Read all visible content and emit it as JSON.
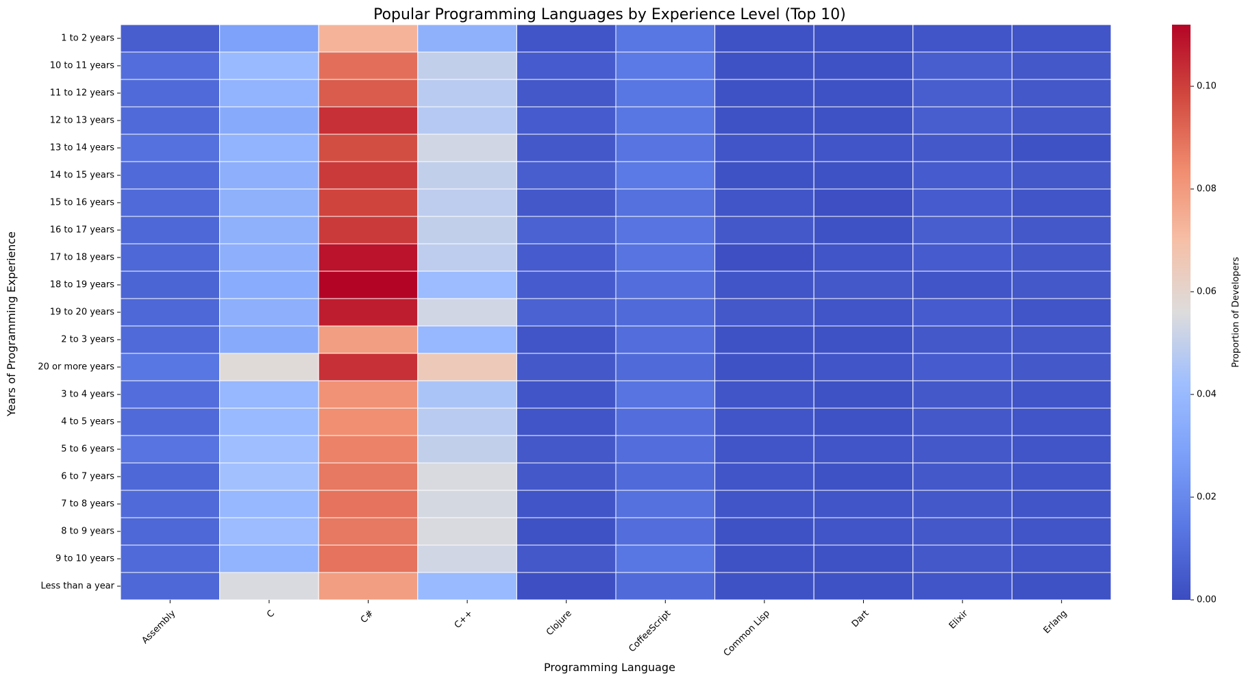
{
  "chart_data": {
    "type": "heatmap",
    "title": "Popular Programming Languages by Experience Level (Top 10)",
    "xlabel": "Programming Language",
    "ylabel": "Years of Programming Experience",
    "colorbar_label": "Proportion of Developers",
    "colormap": "coolwarm",
    "colormap_stops": [
      {
        "t": 0.0,
        "color": "#3b4cc0"
      },
      {
        "t": 0.125,
        "color": "#5977e3"
      },
      {
        "t": 0.25,
        "color": "#7b9ff9"
      },
      {
        "t": 0.375,
        "color": "#9ebeff"
      },
      {
        "t": 0.5,
        "color": "#dddcdc"
      },
      {
        "t": 0.625,
        "color": "#f6bfa6"
      },
      {
        "t": 0.75,
        "color": "#f08b6e"
      },
      {
        "t": 0.875,
        "color": "#d1493f"
      },
      {
        "t": 1.0,
        "color": "#b40426"
      }
    ],
    "cell_border_color": "#ffffff",
    "vmin": 0,
    "vmax": 0.112,
    "colorbar_ticks": [
      "0.00",
      "0.02",
      "0.04",
      "0.06",
      "0.08",
      "0.10"
    ],
    "x": [
      "Assembly",
      "C",
      "C#",
      "C++",
      "Clojure",
      "CoffeeScript",
      "Common Lisp",
      "Dart",
      "Elixir",
      "Erlang"
    ],
    "y": [
      "1 to 2 years",
      "10 to 11 years",
      "11 to 12 years",
      "12 to 13 years",
      "13 to 14 years",
      "14 to 15 years",
      "15 to 16 years",
      "16 to 17 years",
      "17 to 18 years",
      "18 to 19 years",
      "19 to 20 years",
      "2 to 3 years",
      "20 or more years",
      "3 to 4 years",
      "4 to 5 years",
      "5 to 6 years",
      "6 to 7 years",
      "7 to 8 years",
      "8 to 9 years",
      "9 to 10 years",
      "Less than a year"
    ],
    "values": [
      [
        0.006,
        0.029,
        0.073,
        0.036,
        0.003,
        0.014,
        0.002,
        0.002,
        0.003,
        0.003
      ],
      [
        0.011,
        0.04,
        0.09,
        0.05,
        0.005,
        0.015,
        0.002,
        0.002,
        0.006,
        0.004
      ],
      [
        0.01,
        0.037,
        0.094,
        0.048,
        0.004,
        0.014,
        0.002,
        0.002,
        0.006,
        0.004
      ],
      [
        0.01,
        0.033,
        0.103,
        0.047,
        0.005,
        0.014,
        0.002,
        0.002,
        0.006,
        0.004
      ],
      [
        0.012,
        0.037,
        0.097,
        0.053,
        0.004,
        0.013,
        0.003,
        0.003,
        0.004,
        0.002
      ],
      [
        0.01,
        0.035,
        0.101,
        0.05,
        0.006,
        0.015,
        0.002,
        0.002,
        0.005,
        0.004
      ],
      [
        0.01,
        0.036,
        0.099,
        0.049,
        0.004,
        0.012,
        0.003,
        0.001,
        0.005,
        0.003
      ],
      [
        0.009,
        0.036,
        0.101,
        0.05,
        0.007,
        0.013,
        0.004,
        0.002,
        0.006,
        0.004
      ],
      [
        0.009,
        0.035,
        0.109,
        0.049,
        0.005,
        0.013,
        0.001,
        0.003,
        0.005,
        0.004
      ],
      [
        0.008,
        0.034,
        0.112,
        0.041,
        0.005,
        0.011,
        0.003,
        0.004,
        0.003,
        0.004
      ],
      [
        0.009,
        0.035,
        0.107,
        0.053,
        0.007,
        0.01,
        0.004,
        0.003,
        0.005,
        0.003
      ],
      [
        0.01,
        0.033,
        0.079,
        0.039,
        0.003,
        0.011,
        0.002,
        0.002,
        0.004,
        0.004
      ],
      [
        0.014,
        0.057,
        0.103,
        0.065,
        0.004,
        0.01,
        0.002,
        0.003,
        0.005,
        0.004
      ],
      [
        0.011,
        0.039,
        0.082,
        0.045,
        0.003,
        0.013,
        0.003,
        0.002,
        0.004,
        0.003
      ],
      [
        0.01,
        0.04,
        0.083,
        0.048,
        0.003,
        0.011,
        0.003,
        0.002,
        0.004,
        0.003
      ],
      [
        0.013,
        0.042,
        0.086,
        0.05,
        0.004,
        0.011,
        0.003,
        0.003,
        0.004,
        0.003
      ],
      [
        0.009,
        0.043,
        0.088,
        0.055,
        0.004,
        0.01,
        0.003,
        0.002,
        0.004,
        0.003
      ],
      [
        0.01,
        0.039,
        0.089,
        0.054,
        0.003,
        0.012,
        0.003,
        0.003,
        0.004,
        0.003
      ],
      [
        0.009,
        0.041,
        0.088,
        0.055,
        0.002,
        0.011,
        0.002,
        0.003,
        0.004,
        0.003
      ],
      [
        0.01,
        0.037,
        0.089,
        0.053,
        0.004,
        0.014,
        0.002,
        0.002,
        0.004,
        0.003
      ],
      [
        0.009,
        0.055,
        0.079,
        0.04,
        0.001,
        0.01,
        0.002,
        0.002,
        0.003,
        0.002
      ]
    ]
  }
}
